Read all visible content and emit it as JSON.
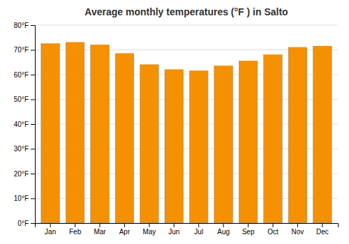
{
  "chart_data": {
    "type": "bar",
    "title": "Average monthly temperatures (°F ) in Salto",
    "categories": [
      "Jan",
      "Feb",
      "Mar",
      "Apr",
      "May",
      "Jun",
      "Jul",
      "Aug",
      "Sep",
      "Oct",
      "Nov",
      "Dec"
    ],
    "values": [
      72.5,
      73.0,
      72.0,
      68.5,
      64.0,
      62.0,
      61.5,
      63.5,
      65.5,
      68.0,
      71.0,
      71.5
    ],
    "color": "#F59000",
    "ylim": [
      0,
      80
    ],
    "yticks": [
      {
        "value": 0,
        "label": "0°F"
      },
      {
        "value": 10,
        "label": "10°F"
      },
      {
        "value": 20,
        "label": "20°F"
      },
      {
        "value": 30,
        "label": "30°F"
      },
      {
        "value": 40,
        "label": "40°F"
      },
      {
        "value": 50,
        "label": "50°F"
      },
      {
        "value": 60,
        "label": "60°F"
      },
      {
        "value": 70,
        "label": "70°F"
      },
      {
        "value": 80,
        "label": "80°F"
      }
    ],
    "grid": true
  }
}
